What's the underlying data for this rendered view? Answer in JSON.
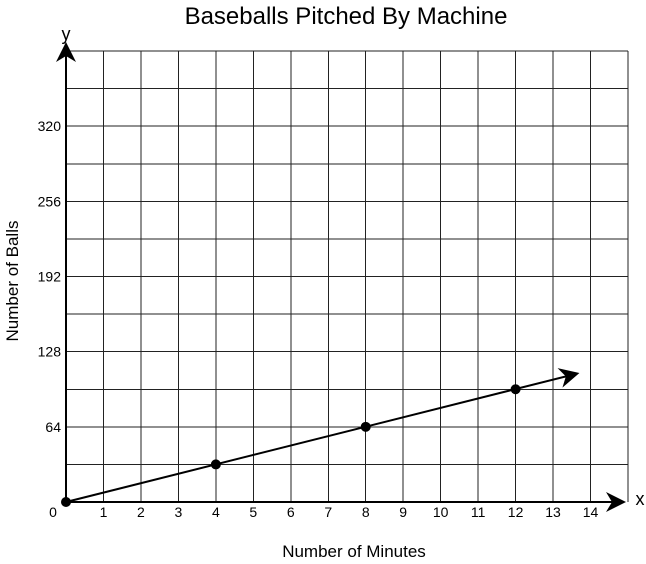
{
  "chart_data": {
    "type": "line",
    "title": "Baseballs Pitched By Machine",
    "xlabel": "Number of Minutes",
    "ylabel": "Number of Balls",
    "x_axis_letter": "x",
    "y_axis_letter": "y",
    "origin_label": "0",
    "xlim": [
      0,
      15
    ],
    "ylim": [
      0,
      384
    ],
    "x_ticks": [
      1,
      2,
      3,
      4,
      5,
      6,
      7,
      8,
      9,
      10,
      11,
      12,
      13,
      14
    ],
    "y_ticks": [
      64,
      128,
      192,
      256,
      320
    ],
    "x_grid_step": 1,
    "y_grid_step": 32,
    "grid": true,
    "series": [
      {
        "points": [
          {
            "x": 0,
            "y": 0
          },
          {
            "x": 4,
            "y": 32
          },
          {
            "x": 8,
            "y": 64
          },
          {
            "x": 12,
            "y": 96
          }
        ],
        "line_to": {
          "x": 13.6,
          "y": 109
        },
        "arrow": true
      }
    ],
    "colors": {
      "line": "#000000",
      "grid": "#222222",
      "background": "#ffffff"
    }
  }
}
